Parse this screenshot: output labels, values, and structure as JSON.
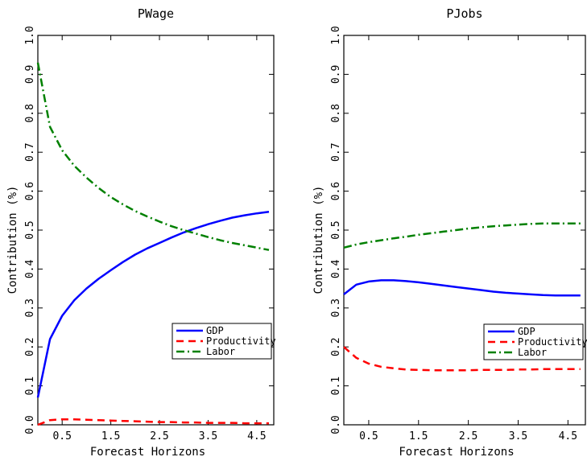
{
  "chart_data": [
    {
      "type": "line",
      "title": "PWage",
      "xlabel": "Forecast Horizons",
      "ylabel": "Contribution (%)",
      "xlim": [
        0,
        4.85
      ],
      "ylim": [
        0,
        1.0
      ],
      "x_ticks": [
        0.5,
        1.5,
        2.5,
        3.5,
        4.5
      ],
      "x_tick_labels": [
        "0.5",
        "1.5",
        "2.5",
        "3.5",
        "4.5"
      ],
      "y_ticks": [
        0,
        0.1,
        0.2,
        0.3,
        0.4,
        0.5,
        0.6,
        0.7,
        0.8,
        0.9,
        1.0
      ],
      "y_tick_labels": [
        "0.0",
        "0.1",
        "0.2",
        "0.3",
        "0.4",
        "0.5",
        "0.6",
        "0.7",
        "0.8",
        "0.9",
        "1.0"
      ],
      "grid": false,
      "legend_position": "lower-right",
      "x": [
        0.0,
        0.25,
        0.5,
        0.75,
        1.0,
        1.25,
        1.5,
        1.75,
        2.0,
        2.25,
        2.5,
        2.75,
        3.0,
        3.25,
        3.5,
        3.75,
        4.0,
        4.25,
        4.5,
        4.75
      ],
      "series": [
        {
          "name": "GDP",
          "color": "#0000ff",
          "style": "solid",
          "values": [
            0.07,
            0.22,
            0.28,
            0.32,
            0.35,
            0.375,
            0.397,
            0.418,
            0.437,
            0.453,
            0.467,
            0.481,
            0.494,
            0.505,
            0.515,
            0.524,
            0.532,
            0.538,
            0.543,
            0.547
          ]
        },
        {
          "name": "Productivity",
          "color": "#ff0000",
          "style": "dashed",
          "values": [
            0.0,
            0.012,
            0.014,
            0.014,
            0.013,
            0.012,
            0.011,
            0.01,
            0.009,
            0.008,
            0.007,
            0.007,
            0.006,
            0.006,
            0.005,
            0.005,
            0.005,
            0.004,
            0.004,
            0.004
          ]
        },
        {
          "name": "Labor",
          "color": "#008000",
          "style": "dashdot",
          "values": [
            0.93,
            0.765,
            0.705,
            0.665,
            0.635,
            0.608,
            0.585,
            0.566,
            0.549,
            0.535,
            0.522,
            0.51,
            0.5,
            0.491,
            0.482,
            0.474,
            0.467,
            0.461,
            0.455,
            0.449
          ]
        }
      ]
    },
    {
      "type": "line",
      "title": "PJobs",
      "xlabel": "Forecast Horizons",
      "ylabel": "Contribution (%)",
      "xlim": [
        0,
        4.85
      ],
      "ylim": [
        0,
        1.0
      ],
      "x_ticks": [
        0.5,
        1.5,
        2.5,
        3.5,
        4.5
      ],
      "x_tick_labels": [
        "0.5",
        "1.5",
        "2.5",
        "3.5",
        "4.5"
      ],
      "y_ticks": [
        0,
        0.1,
        0.2,
        0.3,
        0.4,
        0.5,
        0.6,
        0.7,
        0.8,
        0.9,
        1.0
      ],
      "y_tick_labels": [
        "0.0",
        "0.1",
        "0.2",
        "0.3",
        "0.4",
        "0.5",
        "0.6",
        "0.7",
        "0.8",
        "0.9",
        "1.0"
      ],
      "grid": false,
      "legend_position": "lower-right",
      "x": [
        0.0,
        0.25,
        0.5,
        0.75,
        1.0,
        1.25,
        1.5,
        1.75,
        2.0,
        2.25,
        2.5,
        2.75,
        3.0,
        3.25,
        3.5,
        3.75,
        4.0,
        4.25,
        4.5,
        4.75
      ],
      "series": [
        {
          "name": "GDP",
          "color": "#0000ff",
          "style": "solid",
          "values": [
            0.335,
            0.36,
            0.368,
            0.371,
            0.371,
            0.369,
            0.366,
            0.362,
            0.358,
            0.354,
            0.35,
            0.346,
            0.342,
            0.339,
            0.337,
            0.335,
            0.333,
            0.332,
            0.332,
            0.332
          ]
        },
        {
          "name": "Productivity",
          "color": "#ff0000",
          "style": "dashed",
          "values": [
            0.2,
            0.172,
            0.157,
            0.149,
            0.145,
            0.142,
            0.141,
            0.14,
            0.14,
            0.14,
            0.14,
            0.141,
            0.141,
            0.141,
            0.142,
            0.142,
            0.143,
            0.143,
            0.143,
            0.143
          ]
        },
        {
          "name": "Labor",
          "color": "#008000",
          "style": "dashdot",
          "values": [
            0.455,
            0.463,
            0.469,
            0.474,
            0.479,
            0.483,
            0.488,
            0.492,
            0.496,
            0.5,
            0.504,
            0.507,
            0.51,
            0.512,
            0.514,
            0.516,
            0.517,
            0.517,
            0.517,
            0.517
          ]
        }
      ]
    }
  ]
}
